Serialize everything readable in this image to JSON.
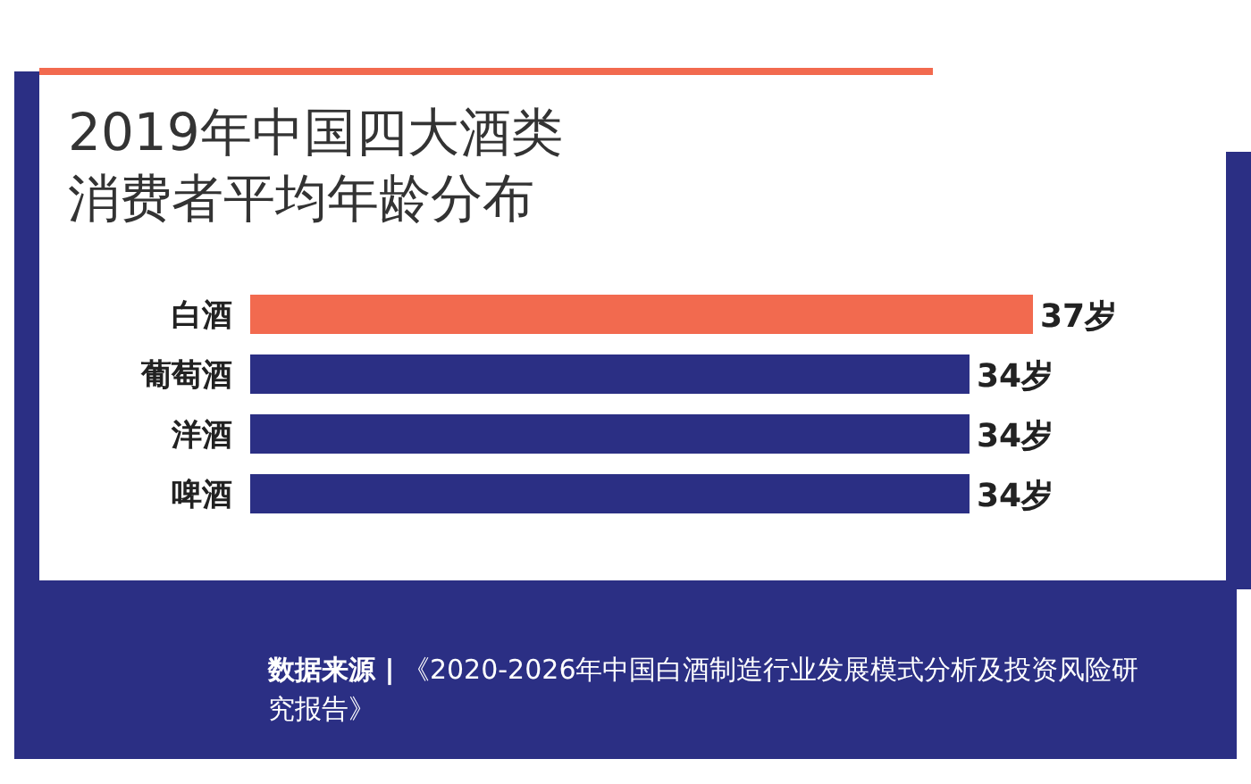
{
  "chart_data": {
    "type": "bar",
    "orientation": "horizontal",
    "title": "2019年中国四大酒类消费者平均年龄分布",
    "categories": [
      "白酒",
      "葡萄酒",
      "洋酒",
      "啤酒"
    ],
    "values": [
      37,
      34,
      34,
      34
    ],
    "colors": [
      "#f26a4f",
      "#2b2f84",
      "#2b2f84",
      "#2b2f84"
    ],
    "value_labels": [
      "37岁",
      "34岁",
      "34岁",
      "34岁"
    ],
    "tick_labels": "y",
    "annotations": [
      "数据来源 | 《2020-2026年中国白酒制造行业发展模式分析及投资风险研究报告》"
    ]
  }
}
